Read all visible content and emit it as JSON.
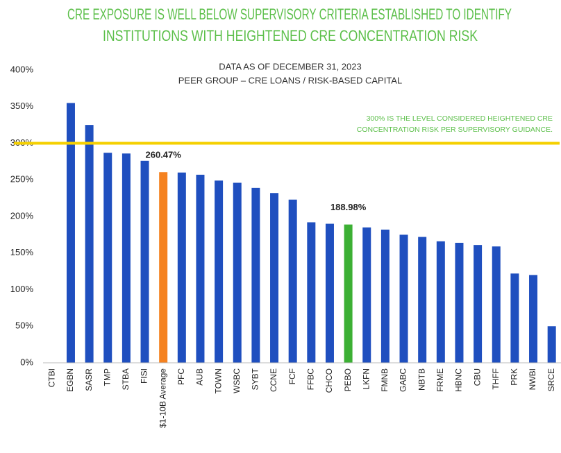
{
  "chart_data": {
    "type": "bar",
    "title": [
      "CRE EXPOSURE IS WELL BELOW SUPERVISORY CRITERIA ESTABLISHED TO IDENTIFY",
      "INSTITUTIONS WITH HEIGHTENED CRE CONCENTRATION RISK"
    ],
    "subtitle": [
      "DATA AS OF DECEMBER 31, 2023",
      "PEER GROUP – CRE LOANS / RISK-BASED CAPITAL"
    ],
    "categories": [
      "CTBI",
      "EGBN",
      "SASR",
      "TMP",
      "STBA",
      "FISI",
      "$1-10B Average",
      "PFC",
      "AUB",
      "TOWN",
      "WSBC",
      "SYBT",
      "CCNE",
      "FCF",
      "FFBC",
      "CHCO",
      "PEBO",
      "LKFN",
      "FMNB",
      "GABC",
      "NBTB",
      "FRME",
      "HBNC",
      "CBU",
      "THFF",
      "PRK",
      "NWBI",
      "SRCE"
    ],
    "values": [
      null,
      355,
      325,
      287,
      286,
      276,
      260.47,
      260,
      257,
      249,
      246,
      239,
      232,
      223,
      192,
      190,
      188.98,
      185,
      182,
      175,
      172,
      166,
      164,
      161,
      159,
      122,
      120,
      50
    ],
    "value_labels": [
      null,
      null,
      null,
      null,
      null,
      null,
      "260.47%",
      null,
      null,
      null,
      null,
      null,
      null,
      null,
      null,
      null,
      "188.98%",
      null,
      null,
      null,
      null,
      null,
      null,
      null,
      null,
      null,
      null,
      null
    ],
    "colors": [
      "#1f4fbf",
      "#1f4fbf",
      "#1f4fbf",
      "#1f4fbf",
      "#1f4fbf",
      "#1f4fbf",
      "#f58220",
      "#1f4fbf",
      "#1f4fbf",
      "#1f4fbf",
      "#1f4fbf",
      "#1f4fbf",
      "#1f4fbf",
      "#1f4fbf",
      "#1f4fbf",
      "#1f4fbf",
      "#3cb034",
      "#1f4fbf",
      "#1f4fbf",
      "#1f4fbf",
      "#1f4fbf",
      "#1f4fbf",
      "#1f4fbf",
      "#1f4fbf",
      "#1f4fbf",
      "#1f4fbf",
      "#1f4fbf",
      "#1f4fbf"
    ],
    "ylim": [
      0,
      400
    ],
    "yticks": [
      {
        "value": 0,
        "label": "0%"
      },
      {
        "value": 50,
        "label": "50%"
      },
      {
        "value": 100,
        "label": "100%"
      },
      {
        "value": 150,
        "label": "150%"
      },
      {
        "value": 200,
        "label": "200%"
      },
      {
        "value": 250,
        "label": "250%"
      },
      {
        "value": 300,
        "label": "300%"
      },
      {
        "value": 350,
        "label": "350%"
      },
      {
        "value": 400,
        "label": "400%"
      }
    ],
    "grid": false,
    "reference_line": {
      "value": 300,
      "color": "#f5d000",
      "label": [
        "300% IS THE LEVEL CONSIDERED HEIGHTENED CRE",
        "CONCENTRATION RISK PER SUPERVISORY GUIDANCE."
      ]
    }
  }
}
